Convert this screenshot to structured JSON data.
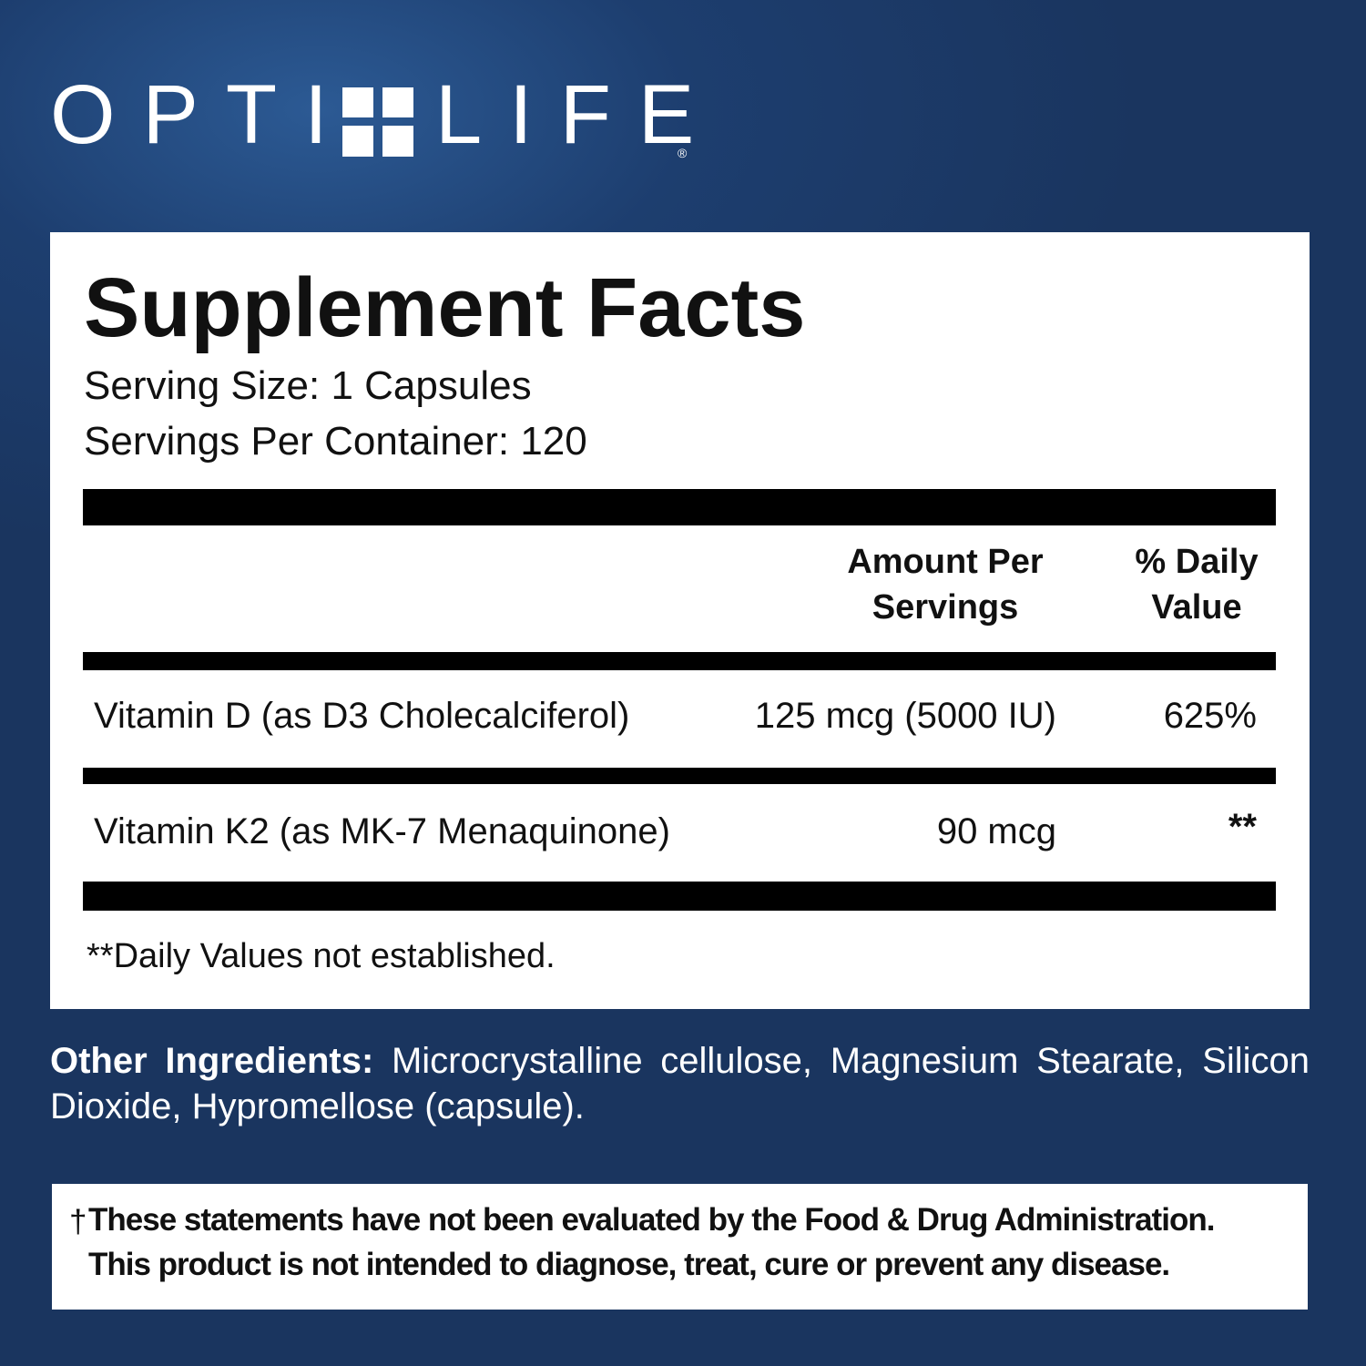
{
  "brand": {
    "left": "OPTI",
    "right": "LIFE",
    "mark": "®"
  },
  "facts": {
    "title": "Supplement Facts",
    "serving_size": "Serving Size: 1 Capsules",
    "servings_per_container": "Servings Per Container: 120",
    "headers": [
      "Amount Per Servings",
      "% Daily Value"
    ],
    "rows": [
      [
        "Vitamin D (as D3 Cholecalciferol)",
        "125 mcg (5000 IU)",
        "625%"
      ],
      [
        "Vitamin K2 (as MK-7 Menaquinone)",
        "90 mcg",
        "**"
      ]
    ],
    "footnote": "**Daily Values not established."
  },
  "other_ingredients": {
    "label": "Other Ingredients:",
    "text": "Microcrystalline cellulose, Magnesium Stearate, Silicon Dioxide, Hypromellose (capsule)."
  },
  "disclaimer": {
    "symbol": "†",
    "lines": [
      "These statements have not been evaluated by the Food & Drug Administration.",
      "This product is not intended to diagnose, treat, cure or prevent any disease."
    ]
  }
}
